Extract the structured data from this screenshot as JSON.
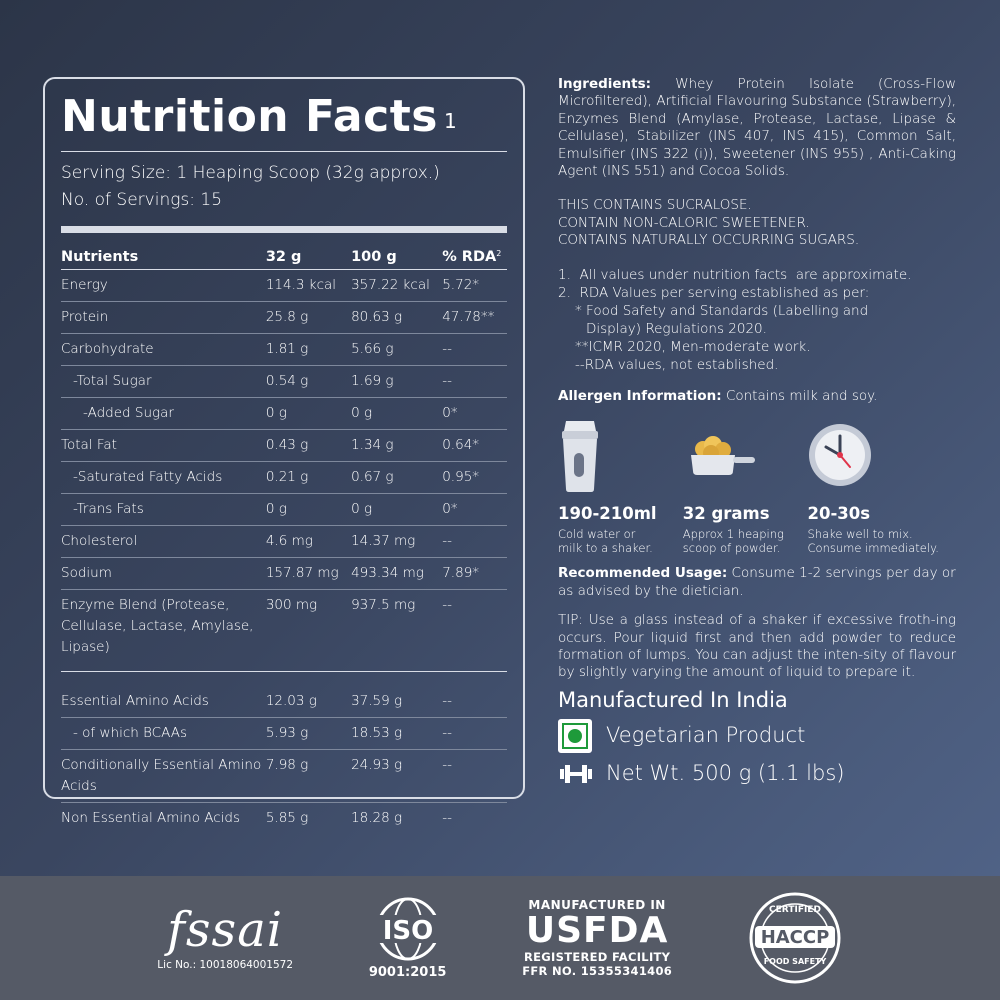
{
  "nutrition": {
    "title": "Nutrition Facts",
    "title_sup": "1",
    "serving_size": "Serving Size: 1 Heaping Scoop (32g approx.)",
    "servings": "No. of Servings: 15",
    "headers": [
      "Nutrients",
      "32 g",
      "100 g",
      "% RDA"
    ],
    "rda_sup": "2",
    "rows": [
      {
        "name": "Energy",
        "v32": "114.3 kcal",
        "v100": "357.22 kcal",
        "rda": "5.72*",
        "indent": 0
      },
      {
        "name": "Protein",
        "v32": "25.8 g",
        "v100": "80.63 g",
        "rda": "47.78**",
        "indent": 0
      },
      {
        "name": "Carbohydrate",
        "v32": "1.81 g",
        "v100": "5.66 g",
        "rda": "--",
        "indent": 0
      },
      {
        "name": "-Total Sugar",
        "v32": "0.54 g",
        "v100": "1.69 g",
        "rda": "--",
        "indent": 1
      },
      {
        "name": "-Added Sugar",
        "v32": "0 g",
        "v100": "0 g",
        "rda": "0*",
        "indent": 2
      },
      {
        "name": "Total Fat",
        "v32": "0.43 g",
        "v100": "1.34 g",
        "rda": "0.64*",
        "indent": 0
      },
      {
        "name": "-Saturated Fatty Acids",
        "v32": "0.21 g",
        "v100": "0.67 g",
        "rda": "0.95*",
        "indent": 1
      },
      {
        "name": "-Trans Fats",
        "v32": "0 g",
        "v100": "0 g",
        "rda": "0*",
        "indent": 1
      },
      {
        "name": "Cholesterol",
        "v32": "4.6 mg",
        "v100": "14.37 mg",
        "rda": "--",
        "indent": 0
      },
      {
        "name": "Sodium",
        "v32": "157.87 mg",
        "v100": "493.34 mg",
        "rda": "7.89*",
        "indent": 0
      },
      {
        "name": "Enzyme Blend (Protease, Cellulase, Lactase, Amylase, Lipase)",
        "v32": "300 mg",
        "v100": "937.5 mg",
        "rda": "--",
        "indent": 0
      }
    ],
    "amino_rows": [
      {
        "name": "Essential Amino Acids",
        "v32": "12.03 g",
        "v100": "37.59 g",
        "rda": "--",
        "indent": 0
      },
      {
        "name": "- of which BCAAs",
        "v32": "5.93 g",
        "v100": "18.53 g",
        "rda": "--",
        "indent": 1
      },
      {
        "name": "Conditionally Essential Amino Acids",
        "v32": "7.98 g",
        "v100": "24.93 g",
        "rda": "--",
        "indent": 0
      },
      {
        "name": "Non Essential Amino Acids",
        "v32": "5.85 g",
        "v100": "18.28 g",
        "rda": "--",
        "indent": 0
      }
    ]
  },
  "info": {
    "ingredients_label": "Ingredients:",
    "ingredients_text": "Whey Protein Isolate (Cross-Flow Microfiltered), Artificial Flavouring Substance (Strawberry), Enzymes Blend (Amylase, Protease, Lactase, Lipase & Cellulase), Stabilizer (INS 407, INS 415), Common Salt, Emulsifier (INS 322 (i)), Sweetener (INS 955) , Anti-Caking Agent (INS 551) and Cocoa Solids.",
    "warnings": [
      "THIS CONTAINS SUCRALOSE.",
      "CONTAIN NON-CALORIC SWEETENER.",
      "CONTAINS NATURALLY OCCURRING SUGARS."
    ],
    "note1": "1.  All values under nutrition facts  are approximate.",
    "note2": "2.  RDA Values per serving established as per:",
    "note2a": "* Food Safety and Standards (Labelling and",
    "note2a_cont": "Display) Regulations 2020.",
    "note2b": "**ICMR 2020, Men-moderate work.",
    "note2c": "--RDA values, not established.",
    "allergen_label": "Allergen Information:",
    "allergen_text": "Contains milk and soy."
  },
  "usage": [
    {
      "icon": "shaker-icon",
      "value": "190-210ml",
      "desc1": "Cold water or",
      "desc2": "milk to a shaker."
    },
    {
      "icon": "scoop-icon",
      "value": "32 grams",
      "desc1": "Approx 1 heaping",
      "desc2": "scoop of powder."
    },
    {
      "icon": "clock-icon",
      "value": "20-30s",
      "desc1": "Shake well to mix.",
      "desc2": "Consume immediately."
    }
  ],
  "recommend_label": "Recommended Usage:",
  "recommend_text": "Consume 1-2 servings per day or as advised by the dietician.",
  "tip": "TIP: Use a glass instead of a shaker if excessive froth-ing occurs. Pour liquid first and then add powder to reduce formation of lumps. You can adjust the inten-sity of flavour by slightly varying the amount of liquid to prepare it.",
  "manufactured": "Manufactured In India",
  "veg": "Vegetarian Product",
  "net_wt": "Net Wt. 500 g (1.1 lbs)",
  "footer": {
    "fssai_logo": "fssai",
    "fssai_lic": "Lic No.: 10018064001572",
    "iso_logo": "ISO",
    "iso_caption": "9001:2015",
    "usfda_top": "MANUFACTURED IN",
    "usfda_mid": "USFDA",
    "usfda_bot1": "REGISTERED FACILITY",
    "usfda_bot2": "FFR NO. 15355341406",
    "haccp_top": "CERTIFIED",
    "haccp_mid": "HACCP",
    "haccp_bot": "FOOD SAFETY"
  },
  "colors": {
    "veg_green": "#1e9a3a",
    "clock_hand": "#e0344a",
    "scoop_powder": "#e8b84a"
  }
}
